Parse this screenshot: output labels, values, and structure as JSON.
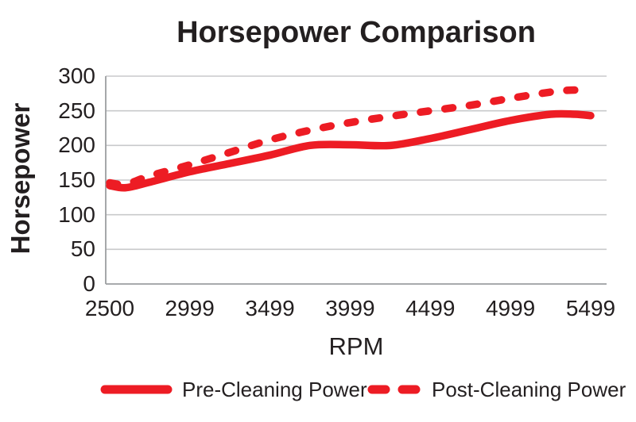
{
  "chart_data": {
    "type": "line",
    "title": "Horsepower Comparison",
    "xlabel": "RPM",
    "ylabel": "Horsepower",
    "grid": "horizontal",
    "legend_position": "bottom",
    "ylim": [
      0,
      300
    ],
    "y_ticks": [
      0,
      50,
      100,
      150,
      200,
      250,
      300
    ],
    "x_tick_labels": [
      "2500",
      "2999",
      "3499",
      "3999",
      "4499",
      "4999",
      "5499"
    ],
    "x_range": [
      2500,
      5499
    ],
    "x": [
      2500,
      2600,
      2750,
      2999,
      3250,
      3499,
      3750,
      3999,
      4250,
      4499,
      4750,
      4999,
      5250,
      5400,
      5499
    ],
    "series": [
      {
        "name": "Pre-Cleaning Power",
        "style": "solid",
        "values": [
          142,
          139,
          147,
          162,
          174,
          186,
          200,
          201,
          200,
          210,
          223,
          236,
          245,
          245,
          243
        ]
      },
      {
        "name": "Post-Cleaning Power",
        "style": "dashed",
        "values": [
          146,
          144,
          156,
          172,
          190,
          208,
          222,
          233,
          242,
          250,
          258,
          268,
          277,
          280,
          277
        ]
      }
    ],
    "colors": {
      "line": "#ED1C24",
      "text": "#231F20",
      "grid": "#C8C9CB",
      "axis": "#9C9EA1",
      "background": "#FFFFFF"
    }
  }
}
